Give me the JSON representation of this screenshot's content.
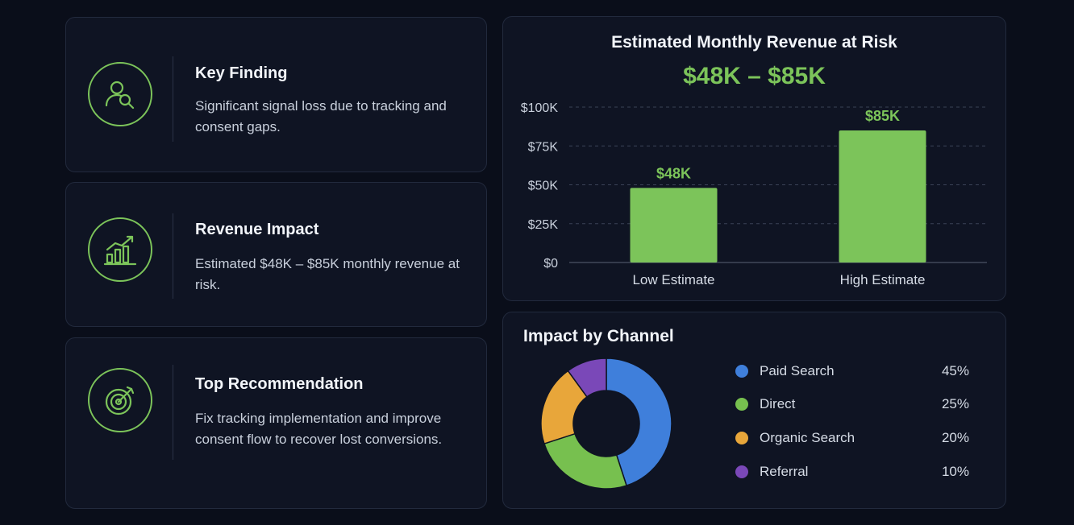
{
  "colors": {
    "accent": "#7cc45a",
    "background": "#0a0e1a",
    "card": "#0f1423"
  },
  "cards": [
    {
      "title": "Key Finding",
      "desc": "Significant signal loss due to tracking and consent gaps.",
      "icon": "user-search-icon"
    },
    {
      "title": "Revenue Impact",
      "desc": "Estimated $48K – $85K monthly revenue at risk.",
      "icon": "growth-chart-icon"
    },
    {
      "title": "Top Recommendation",
      "desc": "Fix tracking implementation and improve consent flow to recover lost conversions.",
      "icon": "target-icon"
    }
  ],
  "chart_data": [
    {
      "type": "bar",
      "title": "Estimated Monthly Revenue at Risk",
      "subtitle": "$48K – $85K",
      "categories": [
        "Low Estimate",
        "High Estimate"
      ],
      "values": [
        48000,
        85000
      ],
      "data_labels": [
        "$48K",
        "$85K"
      ],
      "yticks": [
        0,
        25000,
        50000,
        75000,
        100000
      ],
      "ytick_labels": [
        "$0",
        "$25K",
        "$50K",
        "$75K",
        "$100K"
      ],
      "ylim": [
        0,
        100000
      ],
      "grid": true,
      "color": "#7cc45a"
    },
    {
      "type": "pie",
      "title": "Impact by Channel",
      "donut": true,
      "legend_position": "right",
      "labels": [
        "Paid Search",
        "Direct",
        "Organic Search",
        "Referral"
      ],
      "values": [
        45,
        25,
        20,
        10
      ],
      "value_labels": [
        "45%",
        "25%",
        "20%",
        "10%"
      ],
      "colors": [
        "#3f7fdb",
        "#77c04f",
        "#e8a63a",
        "#7a48b8"
      ]
    }
  ]
}
